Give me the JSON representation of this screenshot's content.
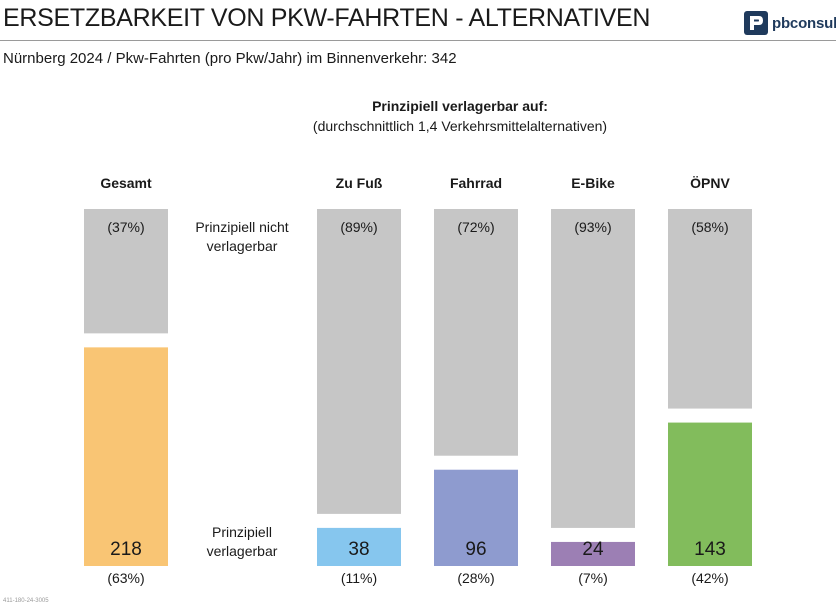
{
  "header": {
    "title": "ERSETZBARKEIT VON PKW-FAHRTEN - ALTERNATIVEN",
    "subtitle": "Nürnberg 2024 / Pkw-Fahrten (pro Pkw/Jahr) im Binnenverkehr: 342",
    "logo_text": "pbconsult",
    "logo_icon": "pbconsult-logo-icon"
  },
  "footer": {
    "code": "411-180-24-3005"
  },
  "chart_data": {
    "type": "bar",
    "title": "Prinzipiell verlagerbar auf:",
    "subtitle": "(durchschnittlich 1,4 Verkehrsmittelalternativen)",
    "row_labels": {
      "top": "Prinzipiell nicht verlagerbar",
      "bottom": "Prinzipiell verlagerbar"
    },
    "total": 342,
    "categories": [
      "Gesamt",
      "Zu Fuß",
      "Fahrrad",
      "E-Bike",
      "ÖPNV"
    ],
    "series": [
      {
        "name": "Prinzipiell verlagerbar",
        "values": [
          218,
          38,
          96,
          24,
          143
        ],
        "pct_labels": [
          "(63%)",
          "(11%)",
          "(28%)",
          "(7%)",
          "(42%)"
        ],
        "colors": [
          "#f9c574",
          "#86c6ee",
          "#8e9bcf",
          "#9c7fb4",
          "#82bc5c"
        ]
      },
      {
        "name": "Prinzipiell nicht verlagerbar",
        "values": [
          124,
          304,
          246,
          318,
          199
        ],
        "pct_labels": [
          "(37%)",
          "(89%)",
          "(72%)",
          "(93%)",
          "(58%)"
        ],
        "color": "#c6c6c6"
      }
    ],
    "ylim": [
      0,
      342
    ],
    "grid": false,
    "legend": "none"
  }
}
